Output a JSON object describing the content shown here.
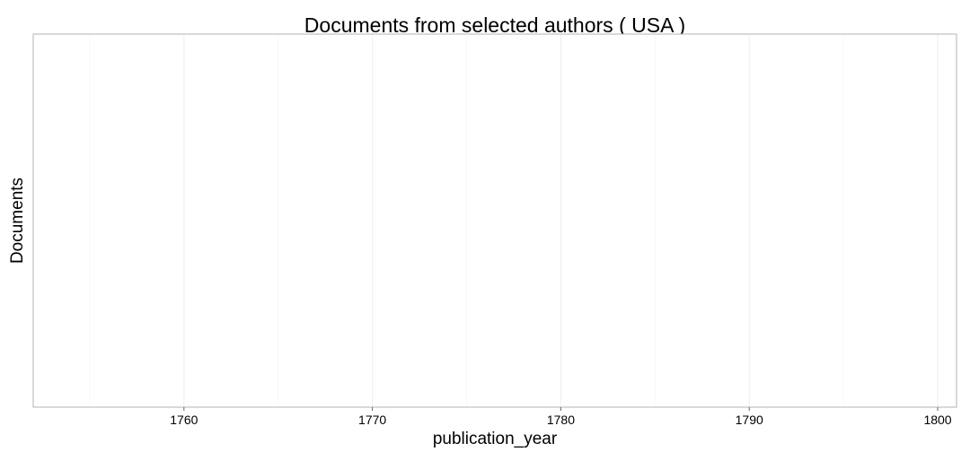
{
  "chart_data": {
    "type": "bar",
    "title": "Documents from selected authors ( USA )",
    "xlabel": "publication_year",
    "ylabel": "Documents",
    "xlim": [
      1752,
      1801
    ],
    "x_ticks": [
      1760,
      1770,
      1780,
      1790,
      1800
    ],
    "x_tick_labels": [
      "1760",
      "1770",
      "1780",
      "1790",
      "1800"
    ],
    "x_minor_ticks": [
      1755,
      1765,
      1775,
      1785,
      1795
    ],
    "series": [],
    "grid": true,
    "legend": "none"
  },
  "colors": {
    "panel_border": "#b3b3b3",
    "grid_major": "#eeeeee",
    "grid_minor": "#f7f7f7",
    "axis_line": "#666666"
  }
}
